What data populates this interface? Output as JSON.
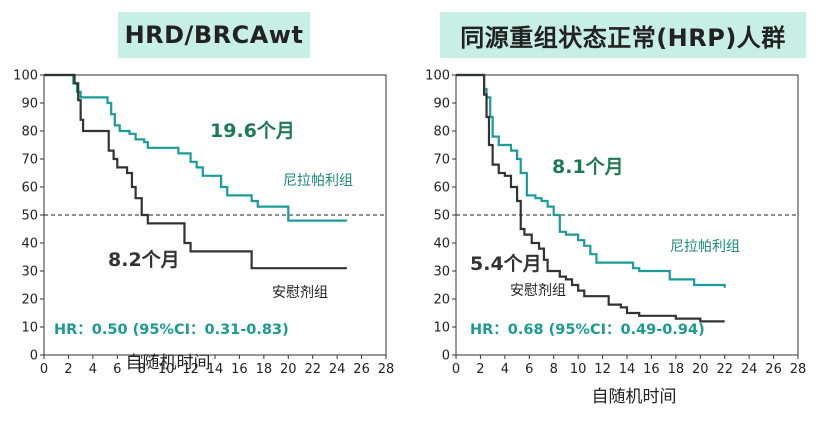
{
  "chart_data": [
    {
      "type": "line",
      "title": "HRD/BRCAwt",
      "xlabel": "自随机时间",
      "xlim": [
        0,
        28
      ],
      "ylim": [
        0,
        100
      ],
      "xticks": [
        0,
        2,
        4,
        6,
        8,
        10,
        12,
        14,
        16,
        18,
        20,
        22,
        24,
        26,
        28
      ],
      "yticks": [
        0,
        10,
        20,
        30,
        40,
        50,
        60,
        70,
        80,
        90,
        100
      ],
      "reference_line_y": 50,
      "colors": {
        "niraparib": "#1a9c98",
        "placebo": "#333333"
      },
      "annotations": {
        "median_niraparib": "19.6个月",
        "median_placebo": "8.2个月",
        "hr": "HR：0.50 (95%CI：0.31-0.83)"
      },
      "series": [
        {
          "name": "尼拉帕利组",
          "color": "#1a9c98",
          "points": [
            [
              0,
              100
            ],
            [
              2.2,
              100
            ],
            [
              2.4,
              97
            ],
            [
              2.7,
              94
            ],
            [
              3,
              92
            ],
            [
              4.5,
              92
            ],
            [
              5.2,
              90
            ],
            [
              5.5,
              86
            ],
            [
              5.8,
              82
            ],
            [
              6.2,
              80
            ],
            [
              7,
              79
            ],
            [
              7.5,
              77
            ],
            [
              8.2,
              76
            ],
            [
              8.5,
              74
            ],
            [
              10.5,
              74
            ],
            [
              11,
              72
            ],
            [
              12,
              69
            ],
            [
              12.5,
              67
            ],
            [
              13,
              64
            ],
            [
              14,
              64
            ],
            [
              14.5,
              60
            ],
            [
              15,
              57
            ],
            [
              17,
              55
            ],
            [
              17.5,
              53
            ],
            [
              19.5,
              53
            ],
            [
              20,
              48
            ],
            [
              23,
              48
            ],
            [
              24.8,
              48
            ]
          ]
        },
        {
          "name": "安慰剂组",
          "color": "#333333",
          "points": [
            [
              0,
              100
            ],
            [
              2,
              100
            ],
            [
              2.5,
              97
            ],
            [
              2.8,
              91
            ],
            [
              3,
              84
            ],
            [
              3.2,
              80
            ],
            [
              5,
              80
            ],
            [
              5.3,
              73
            ],
            [
              5.7,
              70
            ],
            [
              6,
              67
            ],
            [
              6.8,
              65
            ],
            [
              7.2,
              60
            ],
            [
              7.5,
              56
            ],
            [
              8,
              50
            ],
            [
              8.5,
              47
            ],
            [
              10.5,
              47
            ],
            [
              11.5,
              40
            ],
            [
              12,
              37
            ],
            [
              16.5,
              37
            ],
            [
              17,
              31
            ],
            [
              20,
              31
            ],
            [
              24.8,
              31
            ]
          ]
        }
      ]
    },
    {
      "type": "line",
      "title": "同源重组状态正常(HRP)人群",
      "xlabel": "自随机时间",
      "xlim": [
        0,
        28
      ],
      "ylim": [
        0,
        100
      ],
      "xticks": [
        0,
        2,
        4,
        6,
        8,
        10,
        12,
        14,
        16,
        18,
        20,
        22,
        24,
        26,
        28
      ],
      "yticks": [
        0,
        10,
        20,
        30,
        40,
        50,
        60,
        70,
        80,
        90,
        100
      ],
      "reference_line_y": 50,
      "colors": {
        "niraparib": "#1a9c98",
        "placebo": "#333333"
      },
      "annotations": {
        "median_niraparib": "8.1个月",
        "median_placebo": "5.4个月",
        "hr": "HR：0.68 (95%CI：0.49-0.94)"
      },
      "series": [
        {
          "name": "尼拉帕利组",
          "color": "#1a9c98",
          "points": [
            [
              0,
              100
            ],
            [
              2,
              100
            ],
            [
              2.3,
              95
            ],
            [
              2.5,
              92
            ],
            [
              2.8,
              85
            ],
            [
              3,
              78
            ],
            [
              3.5,
              75
            ],
            [
              4.5,
              73
            ],
            [
              5,
              70
            ],
            [
              5.3,
              65
            ],
            [
              5.8,
              57
            ],
            [
              6.5,
              56
            ],
            [
              7,
              55
            ],
            [
              7.5,
              53
            ],
            [
              8,
              50
            ],
            [
              8.5,
              44
            ],
            [
              9,
              43
            ],
            [
              10,
              41
            ],
            [
              10.5,
              39
            ],
            [
              11,
              36
            ],
            [
              11.5,
              33
            ],
            [
              14,
              33
            ],
            [
              14.5,
              31
            ],
            [
              15,
              30
            ],
            [
              17,
              30
            ],
            [
              17.5,
              27
            ],
            [
              19,
              27
            ],
            [
              19.5,
              25
            ],
            [
              21,
              25
            ],
            [
              22,
              24
            ]
          ]
        },
        {
          "name": "安慰剂组",
          "color": "#333333",
          "points": [
            [
              0,
              100
            ],
            [
              2,
              100
            ],
            [
              2.3,
              93
            ],
            [
              2.5,
              85
            ],
            [
              2.7,
              75
            ],
            [
              3,
              68
            ],
            [
              3.5,
              65
            ],
            [
              4,
              64
            ],
            [
              4.5,
              60
            ],
            [
              5,
              55
            ],
            [
              5.3,
              45
            ],
            [
              5.6,
              43
            ],
            [
              6.2,
              40
            ],
            [
              6.8,
              38
            ],
            [
              7.2,
              34
            ],
            [
              7.5,
              30
            ],
            [
              8.5,
              28
            ],
            [
              9,
              27
            ],
            [
              9.5,
              25
            ],
            [
              10,
              23
            ],
            [
              10.5,
              21
            ],
            [
              12,
              21
            ],
            [
              12.5,
              18
            ],
            [
              13.5,
              17
            ],
            [
              14,
              15
            ],
            [
              15,
              14
            ],
            [
              17,
              14
            ],
            [
              18,
              13
            ],
            [
              20,
              12
            ],
            [
              22,
              12
            ]
          ]
        }
      ]
    }
  ]
}
